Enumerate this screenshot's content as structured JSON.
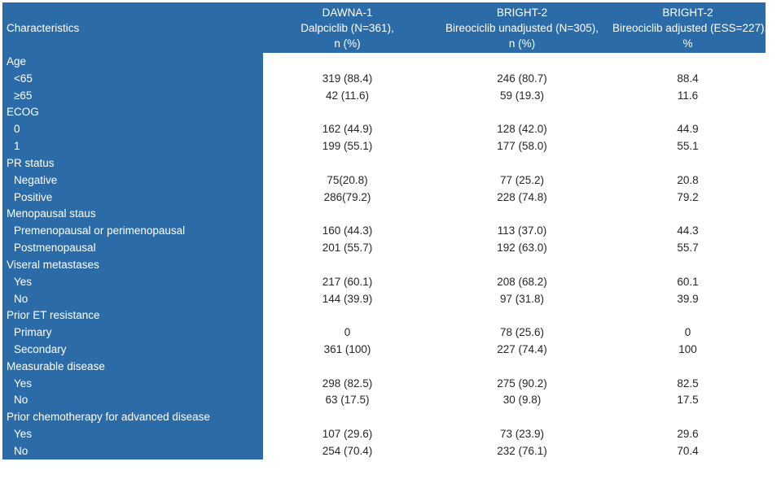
{
  "colors": {
    "panel_blue": "#2B6BA8",
    "header_text": "#FFFFFF",
    "data_text": "#262626",
    "page_bg": "#FFFFFF"
  },
  "table": {
    "header": {
      "characteristics_label": "Characteristics",
      "columns": [
        {
          "study": "DAWNA-1",
          "arm": "Dalpciclib (N=361),",
          "unit": "n (%)"
        },
        {
          "study": "BRIGHT-2",
          "arm": "Bireociclib unadjusted (N=305),",
          "unit": "n (%)"
        },
        {
          "study": "BRIGHT-2",
          "arm": "Bireociclib adjusted (ESS=227),",
          "unit": "%"
        }
      ]
    },
    "rows": [
      {
        "label": "Age",
        "indent": false,
        "values": [
          "",
          "",
          ""
        ]
      },
      {
        "label": "<65",
        "indent": true,
        "values": [
          "319 (88.4)",
          "246 (80.7)",
          "88.4"
        ]
      },
      {
        "label": "≥65",
        "indent": true,
        "values": [
          "42 (11.6)",
          "59 (19.3)",
          "11.6"
        ]
      },
      {
        "label": "ECOG",
        "indent": false,
        "values": [
          "",
          "",
          ""
        ]
      },
      {
        "label": "0",
        "indent": true,
        "values": [
          "162 (44.9)",
          "128 (42.0)",
          "44.9"
        ]
      },
      {
        "label": "1",
        "indent": true,
        "values": [
          "199 (55.1)",
          "177 (58.0)",
          "55.1"
        ]
      },
      {
        "label": "PR status",
        "indent": false,
        "values": [
          "",
          "",
          ""
        ]
      },
      {
        "label": "Negative",
        "indent": true,
        "values": [
          "75(20.8)",
          "77 (25.2)",
          "20.8"
        ]
      },
      {
        "label": "Positive",
        "indent": true,
        "values": [
          "286(79.2)",
          "228 (74.8)",
          "79.2"
        ]
      },
      {
        "label": "Menopausal staus",
        "indent": false,
        "values": [
          "",
          "",
          ""
        ]
      },
      {
        "label": "Premenopausal or perimenopausal",
        "indent": true,
        "values": [
          "160 (44.3)",
          "113 (37.0)",
          "44.3"
        ]
      },
      {
        "label": "Postmenopausal",
        "indent": true,
        "values": [
          "201 (55.7)",
          "192 (63.0)",
          "55.7"
        ]
      },
      {
        "label": "Viseral metastases",
        "indent": false,
        "values": [
          "",
          "",
          ""
        ]
      },
      {
        "label": "Yes",
        "indent": true,
        "values": [
          "217 (60.1)",
          "208 (68.2)",
          "60.1"
        ]
      },
      {
        "label": "No",
        "indent": true,
        "values": [
          "144 (39.9)",
          "97 (31.8)",
          "39.9"
        ]
      },
      {
        "label": "Prior ET resistance",
        "indent": false,
        "values": [
          "",
          "",
          ""
        ]
      },
      {
        "label": "Primary",
        "indent": true,
        "values": [
          "0",
          "78 (25.6)",
          "0"
        ]
      },
      {
        "label": "Secondary",
        "indent": true,
        "values": [
          "361 (100)",
          "227 (74.4)",
          "100"
        ]
      },
      {
        "label": "Measurable disease",
        "indent": false,
        "values": [
          "",
          "",
          ""
        ]
      },
      {
        "label": "Yes",
        "indent": true,
        "values": [
          "298 (82.5)",
          "275 (90.2)",
          "82.5"
        ]
      },
      {
        "label": "No",
        "indent": true,
        "values": [
          "63 (17.5)",
          "30 (9.8)",
          "17.5"
        ]
      },
      {
        "label": "Prior chemotherapy for advanced disease",
        "indent": false,
        "values": [
          "",
          "",
          ""
        ]
      },
      {
        "label": "Yes",
        "indent": true,
        "values": [
          "107 (29.6)",
          "73 (23.9)",
          "29.6"
        ]
      },
      {
        "label": "No",
        "indent": true,
        "values": [
          "254 (70.4)",
          "232 (76.1)",
          "70.4"
        ]
      }
    ]
  }
}
